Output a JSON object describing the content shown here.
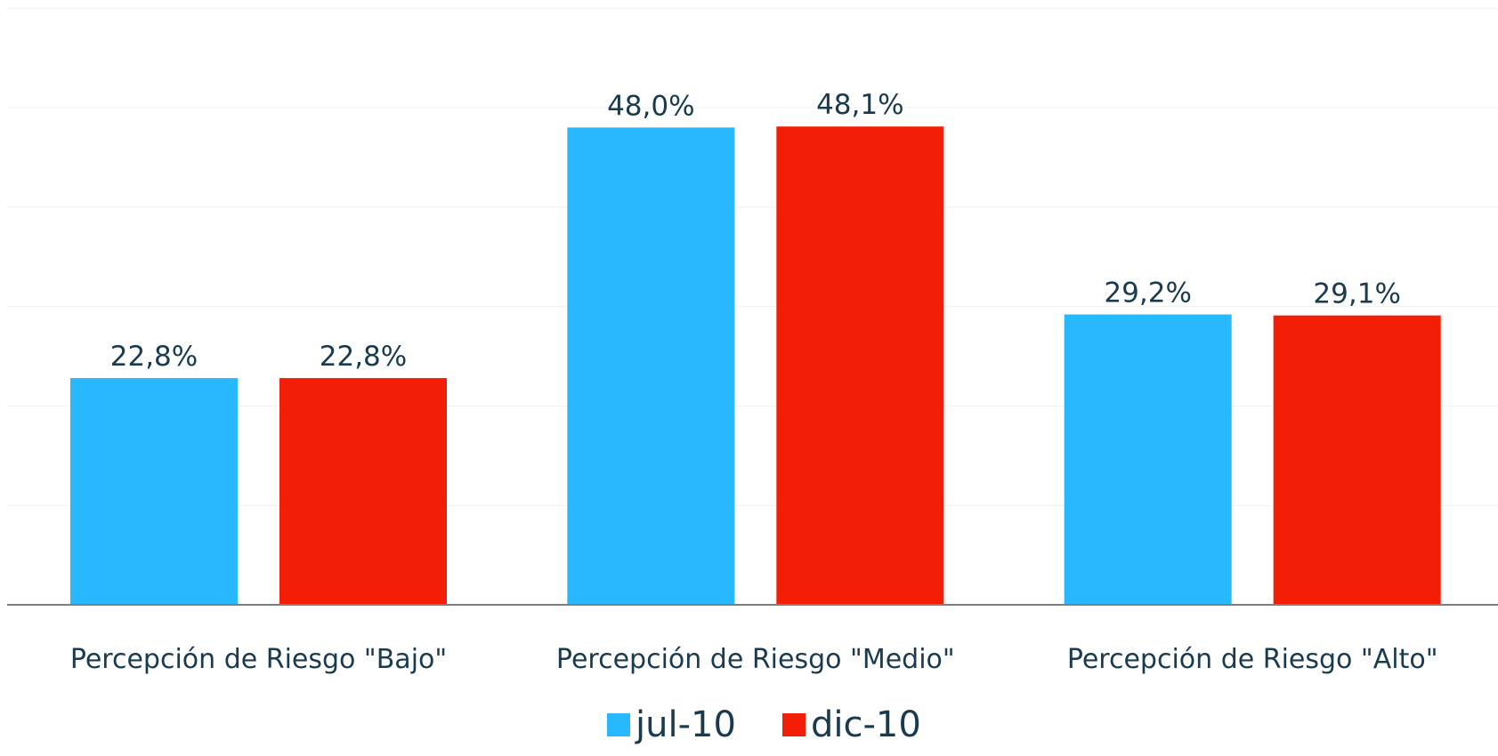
{
  "chart_data": {
    "type": "bar",
    "categories": [
      "Percepción de Riesgo \"Bajo\"",
      "Percepción de Riesgo \"Medio\"",
      "Percepción de Riesgo \"Alto\""
    ],
    "series": [
      {
        "name": "jul-10",
        "color": "#27b8fd",
        "values": [
          22.8,
          48.0,
          29.2
        ],
        "labels": [
          "22,8%",
          "48,0%",
          "29,2%"
        ]
      },
      {
        "name": "dic-10",
        "color": "#f21e05",
        "values": [
          22.8,
          48.1,
          29.1
        ],
        "labels": [
          "22,8%",
          "48,1%",
          "29,1%"
        ]
      }
    ],
    "ylim": [
      0,
      60
    ],
    "grid": true,
    "legend": "bottom-center",
    "title": "",
    "xlabel": "",
    "ylabel": ""
  }
}
